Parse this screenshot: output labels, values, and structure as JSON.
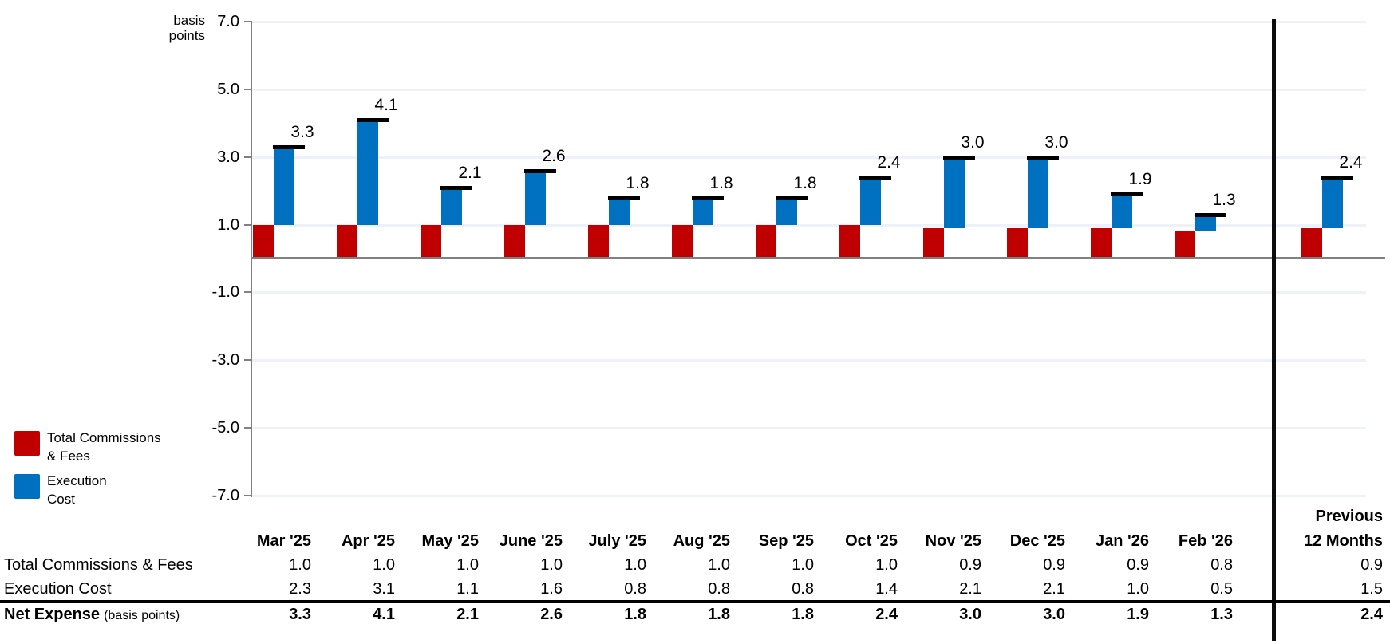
{
  "chart_data": {
    "type": "bar",
    "subtype": "stacked-waterfall-with-total-markers",
    "title": "",
    "unit_label": [
      "basis",
      "points"
    ],
    "ylim": [
      -7.0,
      7.0
    ],
    "yticks": [
      7.0,
      5.0,
      3.0,
      1.0,
      -1.0,
      -3.0,
      -5.0,
      -7.0
    ],
    "grid": true,
    "legend_position": "bottom-left",
    "categories": [
      "Mar '25",
      "Apr '25",
      "May '25",
      "June '25",
      "July '25",
      "Aug '25",
      "Sep '25",
      "Oct '25",
      "Nov '25",
      "Dec '25",
      "Jan '26",
      "Feb '26"
    ],
    "summary_category": [
      "Previous",
      "12 Months"
    ],
    "series": [
      {
        "name": "Total Commissions & Fees",
        "color": "#C00000",
        "values": [
          1.0,
          1.0,
          1.0,
          1.0,
          1.0,
          1.0,
          1.0,
          1.0,
          0.9,
          0.9,
          0.9,
          0.8
        ],
        "summary": 0.9
      },
      {
        "name": "Execution Cost",
        "color": "#0070C0",
        "values": [
          2.3,
          3.1,
          1.1,
          1.6,
          0.8,
          0.8,
          0.8,
          1.4,
          2.1,
          2.1,
          1.0,
          0.5
        ],
        "summary": 1.5
      }
    ],
    "totals": {
      "name": "Net Expense",
      "unit_suffix": "(basis points)",
      "values": [
        3.3,
        4.1,
        2.1,
        2.6,
        1.8,
        1.8,
        1.8,
        2.4,
        3.0,
        3.0,
        1.9,
        1.3
      ],
      "summary": 2.4
    }
  },
  "legend": {
    "items": [
      {
        "lines": [
          "Total Commissions",
          "& Fees"
        ],
        "color": "#C00000"
      },
      {
        "lines": [
          "Execution",
          "Cost"
        ],
        "color": "#0070C0"
      }
    ]
  },
  "table": {
    "row_labels": [
      {
        "label": "Total Commissions & Fees"
      },
      {
        "label": "Execution Cost"
      },
      {
        "label": "Net Expense",
        "suffix": "(basis points)"
      }
    ]
  },
  "colors": {
    "commissions_red": "#C00000",
    "execution_blue": "#0070C0",
    "axis_gray": "#808080",
    "gridline_blue_gray": "#edf2f9",
    "marker_black": "#000000"
  }
}
